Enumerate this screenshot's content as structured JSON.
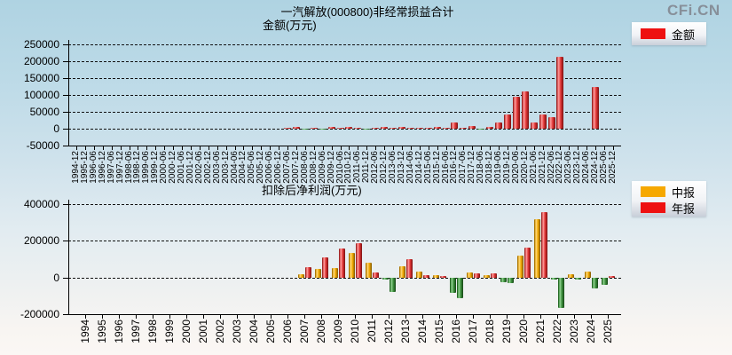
{
  "logo": "CFi.CN",
  "colors": {
    "red": "#ee1111",
    "orange": "#f6a800",
    "green": "#2f7d2f",
    "grid": "#000000",
    "logo_gray": "#878f99"
  },
  "top": {
    "title_line1": "一汽解放(000800)非经常损益合计",
    "title_line2": "金额(万元)",
    "chart_data": {
      "type": "bar",
      "title": "一汽解放(000800)非经常损益合计 金额(万元)",
      "ylabel": "金额(万元)",
      "ylim": [
        -50000,
        250000
      ],
      "yticks": [
        250000,
        200000,
        150000,
        100000,
        50000,
        0,
        -50000
      ],
      "grid": "horizontal-dashed",
      "legend_position": "top-right",
      "negative_color": "green",
      "categories": [
        "1994-12",
        "1995-12",
        "1996-06",
        "1996-12",
        "1997-06",
        "1997-12",
        "1998-06",
        "1998-12",
        "1999-06",
        "1999-12",
        "2000-06",
        "2000-12",
        "2001-06",
        "2001-12",
        "2002-06",
        "2002-12",
        "2003-06",
        "2003-12",
        "2004-06",
        "2004-12",
        "2005-06",
        "2005-12",
        "2006-06",
        "2006-12",
        "2007-06",
        "2007-12",
        "2008-06",
        "2008-12",
        "2009-06",
        "2009-12",
        "2010-06",
        "2010-12",
        "2011-06",
        "2011-12",
        "2012-06",
        "2012-12",
        "2013-06",
        "2013-12",
        "2014-06",
        "2014-12",
        "2015-06",
        "2015-12",
        "2016-06",
        "2016-12",
        "2017-06",
        "2017-12",
        "2018-06",
        "2018-12",
        "2019-06",
        "2019-12",
        "2020-06",
        "2020-12",
        "2021-06",
        "2021-12",
        "2022-06",
        "2022-12",
        "2023-06",
        "2023-12",
        "2024-06",
        "2024-12",
        "2025-06",
        "2025-12"
      ],
      "series": [
        {
          "name": "金额",
          "color": "red",
          "values": [
            null,
            null,
            null,
            null,
            null,
            null,
            null,
            null,
            null,
            null,
            null,
            null,
            null,
            null,
            null,
            null,
            null,
            null,
            null,
            null,
            null,
            null,
            null,
            null,
            2500,
            4000,
            -2000,
            3000,
            -2500,
            4000,
            2500,
            4000,
            3000,
            -2500,
            2500,
            4000,
            2000,
            4000,
            2000,
            3500,
            2000,
            4000,
            3000,
            17500,
            3500,
            9000,
            -2000,
            5000,
            19000,
            43000,
            96000,
            111000,
            18000,
            41000,
            34000,
            212000,
            null,
            null,
            null,
            123000,
            null,
            null
          ]
        }
      ]
    }
  },
  "bottom": {
    "title": "扣除后净利润(万元)",
    "chart_data": {
      "type": "bar",
      "title": "扣除后净利润(万元)",
      "ylim": [
        -200000,
        400000
      ],
      "yticks": [
        400000,
        200000,
        0,
        -200000
      ],
      "grid": "horizontal-dashed",
      "legend_position": "top-right",
      "negative_color": "green",
      "categories": [
        "1994",
        "1995",
        "1996",
        "1997",
        "1998",
        "1999",
        "2000",
        "2001",
        "2002",
        "2003",
        "2004",
        "2005",
        "2006",
        "2007",
        "2008",
        "2009",
        "2010",
        "2011",
        "2012",
        "2013",
        "2014",
        "2015",
        "2016",
        "2017",
        "2018",
        "2019",
        "2020",
        "2021",
        "2022",
        "2023",
        "2024",
        "2025"
      ],
      "series": [
        {
          "name": "中报",
          "color": "orange",
          "values": [
            null,
            null,
            null,
            null,
            null,
            null,
            null,
            null,
            null,
            null,
            null,
            null,
            null,
            16000,
            47000,
            54000,
            133000,
            80000,
            -11000,
            63000,
            32000,
            15000,
            -83000,
            28000,
            15000,
            -24000,
            121000,
            316000,
            -13000,
            18000,
            31000,
            -42000
          ]
        },
        {
          "name": "年报",
          "color": "red",
          "values": [
            null,
            null,
            null,
            null,
            null,
            null,
            null,
            null,
            null,
            null,
            null,
            null,
            null,
            55000,
            110000,
            160000,
            186000,
            26000,
            -77000,
            98000,
            15000,
            8000,
            -115000,
            21000,
            21000,
            -32000,
            161000,
            355000,
            -167000,
            -11000,
            -58000,
            7000
          ]
        }
      ]
    }
  }
}
